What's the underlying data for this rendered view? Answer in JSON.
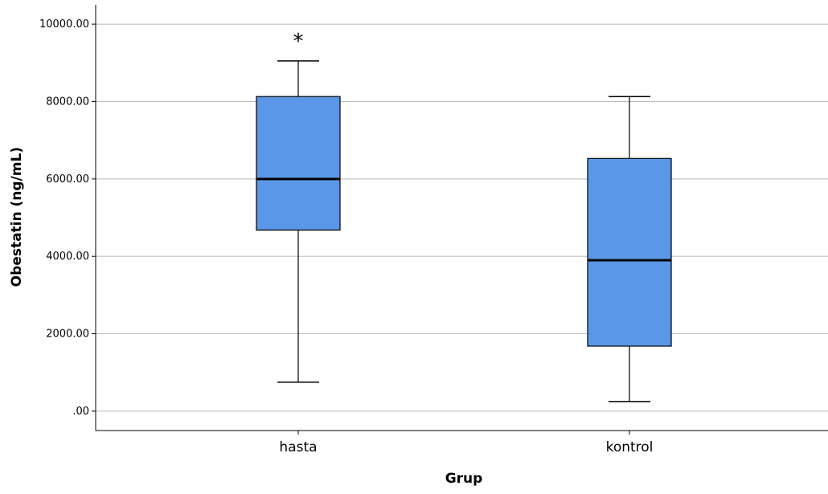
{
  "chart_data": {
    "type": "boxplot",
    "title": "",
    "xlabel": "Grup",
    "ylabel": "Obestatin (ng/mL)",
    "ylim": [
      -500,
      10500
    ],
    "y_ticks": [
      0,
      2000,
      4000,
      6000,
      8000,
      10000
    ],
    "y_tick_labels": [
      ".00",
      "2000.00",
      "4000.00",
      "6000.00",
      "8000.00",
      "10000.00"
    ],
    "grid": true,
    "box_color": "#5b97e6",
    "categories": [
      "hasta",
      "kontrol"
    ],
    "boxes": [
      {
        "category": "hasta",
        "whisker_low": 750,
        "q1": 4680,
        "median": 6000,
        "q3": 8130,
        "whisker_high": 9050,
        "outliers": [
          {
            "value": 9730,
            "marker": "*"
          }
        ]
      },
      {
        "category": "kontrol",
        "whisker_low": 250,
        "q1": 1680,
        "median": 3900,
        "q3": 6530,
        "whisker_high": 8130,
        "outliers": []
      }
    ]
  }
}
